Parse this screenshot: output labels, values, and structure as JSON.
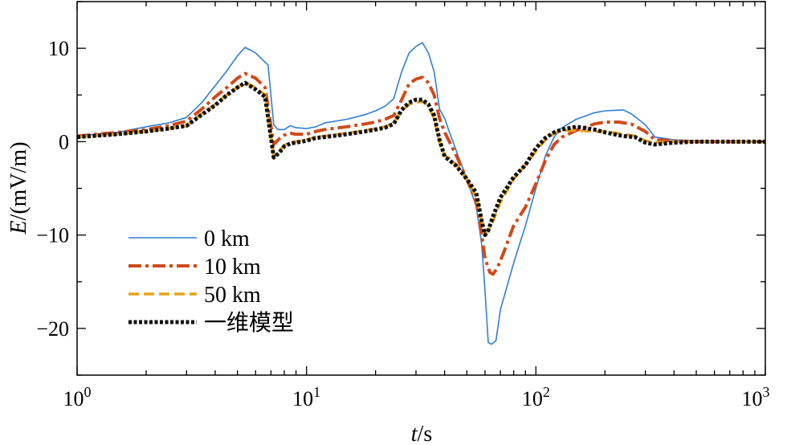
{
  "chart_data": {
    "type": "line",
    "xlabel_italic": "t",
    "xlabel_unit": "/s",
    "ylabel_italic": "E",
    "ylabel_unit": "/(mV/m)",
    "xscale": "log",
    "xlim": [
      1,
      1000
    ],
    "ylim": [
      -25,
      15
    ],
    "x_ticks": [
      {
        "value": 1,
        "base": "10",
        "exp": "0"
      },
      {
        "value": 10,
        "base": "10",
        "exp": "1"
      },
      {
        "value": 100,
        "base": "10",
        "exp": "2"
      },
      {
        "value": 1000,
        "base": "10",
        "exp": "3"
      }
    ],
    "y_ticks": [
      {
        "value": 10,
        "label": "10"
      },
      {
        "value": 0,
        "label": "0"
      },
      {
        "value": -10,
        "label": "−10"
      },
      {
        "value": -20,
        "label": "−20"
      }
    ],
    "grid": false,
    "legend_position": "lower-left",
    "series": [
      {
        "name": "0 km",
        "color": "#2f7fd6",
        "style": "solid",
        "points": [
          [
            1,
            0.6
          ],
          [
            1.5,
            1.0
          ],
          [
            2,
            1.6
          ],
          [
            2.5,
            2.0
          ],
          [
            3,
            2.6
          ],
          [
            3.5,
            4.2
          ],
          [
            4,
            6.0
          ],
          [
            4.5,
            7.6
          ],
          [
            5,
            9.2
          ],
          [
            5.4,
            10.1
          ],
          [
            6,
            9.5
          ],
          [
            6.8,
            8.2
          ],
          [
            7.2,
            1.8
          ],
          [
            7.5,
            1.3
          ],
          [
            8,
            1.3
          ],
          [
            8.5,
            1.7
          ],
          [
            9,
            1.5
          ],
          [
            10,
            1.4
          ],
          [
            11,
            1.6
          ],
          [
            12,
            2.0
          ],
          [
            15,
            2.4
          ],
          [
            18,
            2.9
          ],
          [
            20,
            3.3
          ],
          [
            22,
            3.8
          ],
          [
            24,
            4.6
          ],
          [
            26,
            7.5
          ],
          [
            28,
            9.5
          ],
          [
            30,
            10.2
          ],
          [
            32,
            10.6
          ],
          [
            34,
            9.5
          ],
          [
            36,
            7.5
          ],
          [
            38,
            3.5
          ],
          [
            40,
            2.5
          ],
          [
            42,
            1.0
          ],
          [
            45,
            -1.0
          ],
          [
            50,
            -4.0
          ],
          [
            55,
            -7.0
          ],
          [
            58,
            -11.0
          ],
          [
            60,
            -16.0
          ],
          [
            62,
            -21.5
          ],
          [
            64,
            -21.7
          ],
          [
            67,
            -21.3
          ],
          [
            70,
            -18.0
          ],
          [
            80,
            -13.0
          ],
          [
            90,
            -9.0
          ],
          [
            100,
            -5.0
          ],
          [
            110,
            -1.5
          ],
          [
            120,
            0.5
          ],
          [
            130,
            1.5
          ],
          [
            150,
            2.4
          ],
          [
            180,
            3.1
          ],
          [
            200,
            3.3
          ],
          [
            240,
            3.4
          ],
          [
            260,
            3.0
          ],
          [
            300,
            1.8
          ],
          [
            330,
            0.5
          ],
          [
            400,
            0.2
          ],
          [
            500,
            0.1
          ],
          [
            1000,
            0.0
          ]
        ]
      },
      {
        "name": "10 km",
        "color": "#d14a1a",
        "style": "dashdot",
        "points": [
          [
            1,
            0.6
          ],
          [
            1.5,
            1.0
          ],
          [
            2,
            1.3
          ],
          [
            2.5,
            1.7
          ],
          [
            3,
            2.2
          ],
          [
            3.5,
            3.5
          ],
          [
            4,
            4.8
          ],
          [
            4.5,
            5.8
          ],
          [
            5,
            6.8
          ],
          [
            5.4,
            7.3
          ],
          [
            6,
            6.8
          ],
          [
            6.6,
            5.8
          ],
          [
            7.2,
            -0.3
          ],
          [
            7.6,
            0.3
          ],
          [
            8,
            0.7
          ],
          [
            8.5,
            0.9
          ],
          [
            9,
            0.8
          ],
          [
            10,
            0.8
          ],
          [
            11,
            1.1
          ],
          [
            12,
            1.3
          ],
          [
            15,
            1.6
          ],
          [
            18,
            1.9
          ],
          [
            20,
            2.1
          ],
          [
            22,
            2.4
          ],
          [
            24,
            2.8
          ],
          [
            26,
            4.5
          ],
          [
            28,
            6.2
          ],
          [
            30,
            6.7
          ],
          [
            32,
            6.9
          ],
          [
            34,
            6.3
          ],
          [
            36,
            5.0
          ],
          [
            38,
            2.5
          ],
          [
            40,
            1.0
          ],
          [
            42,
            0.0
          ],
          [
            45,
            -1.5
          ],
          [
            50,
            -4.0
          ],
          [
            55,
            -6.5
          ],
          [
            58,
            -10.0
          ],
          [
            60,
            -12.5
          ],
          [
            63,
            -14.0
          ],
          [
            65,
            -14.2
          ],
          [
            68,
            -13.5
          ],
          [
            72,
            -12.0
          ],
          [
            80,
            -9.0
          ],
          [
            90,
            -7.0
          ],
          [
            100,
            -4.5
          ],
          [
            110,
            -2.0
          ],
          [
            120,
            -0.3
          ],
          [
            130,
            0.5
          ],
          [
            150,
            1.2
          ],
          [
            180,
            1.9
          ],
          [
            200,
            2.1
          ],
          [
            230,
            2.1
          ],
          [
            260,
            1.9
          ],
          [
            300,
            1.1
          ],
          [
            330,
            0.2
          ],
          [
            400,
            0.1
          ],
          [
            500,
            0.0
          ],
          [
            1000,
            0.0
          ]
        ]
      },
      {
        "name": "50 km",
        "color": "#e8a21a",
        "style": "dashed",
        "points": [
          [
            1,
            0.5
          ],
          [
            1.5,
            0.8
          ],
          [
            2,
            1.1
          ],
          [
            2.5,
            1.4
          ],
          [
            3,
            1.7
          ],
          [
            3.5,
            3.0
          ],
          [
            4,
            4.0
          ],
          [
            4.5,
            5.0
          ],
          [
            5,
            5.8
          ],
          [
            5.4,
            6.3
          ],
          [
            6,
            5.8
          ],
          [
            6.6,
            5.0
          ],
          [
            7.2,
            -1.5
          ],
          [
            7.6,
            -1.0
          ],
          [
            8,
            -0.4
          ],
          [
            8.5,
            -0.1
          ],
          [
            9,
            0.0
          ],
          [
            10,
            0.2
          ],
          [
            11,
            0.5
          ],
          [
            12,
            0.6
          ],
          [
            15,
            0.9
          ],
          [
            18,
            1.2
          ],
          [
            20,
            1.4
          ],
          [
            22,
            1.6
          ],
          [
            24,
            2.0
          ],
          [
            26,
            3.3
          ],
          [
            28,
            4.0
          ],
          [
            30,
            4.2
          ],
          [
            32,
            4.3
          ],
          [
            34,
            3.8
          ],
          [
            36,
            2.5
          ],
          [
            38,
            0.0
          ],
          [
            40,
            -1.5
          ],
          [
            42,
            -1.8
          ],
          [
            45,
            -2.5
          ],
          [
            50,
            -4.0
          ],
          [
            55,
            -6.0
          ],
          [
            58,
            -8.5
          ],
          [
            60,
            -9.8
          ],
          [
            62,
            -9.5
          ],
          [
            65,
            -8.5
          ],
          [
            70,
            -6.5
          ],
          [
            80,
            -4.0
          ],
          [
            90,
            -2.5
          ],
          [
            100,
            -1.0
          ],
          [
            110,
            0.2
          ],
          [
            120,
            0.9
          ],
          [
            130,
            1.2
          ],
          [
            150,
            1.2
          ],
          [
            180,
            1.1
          ],
          [
            200,
            1.1
          ],
          [
            240,
            0.8
          ],
          [
            270,
            0.6
          ],
          [
            300,
            0.1
          ],
          [
            330,
            -0.1
          ],
          [
            400,
            0.0
          ],
          [
            500,
            0.0
          ],
          [
            1000,
            0.0
          ]
        ]
      },
      {
        "name": "一维模型",
        "color": "#111111",
        "style": "dotted",
        "points": [
          [
            1,
            0.5
          ],
          [
            1.5,
            0.8
          ],
          [
            2,
            1.1
          ],
          [
            2.5,
            1.4
          ],
          [
            3,
            1.7
          ],
          [
            3.5,
            2.9
          ],
          [
            4,
            3.9
          ],
          [
            4.5,
            5.0
          ],
          [
            5,
            5.8
          ],
          [
            5.4,
            6.3
          ],
          [
            6,
            5.6
          ],
          [
            6.6,
            4.8
          ],
          [
            7.2,
            -1.7
          ],
          [
            7.6,
            -1.2
          ],
          [
            8,
            -0.5
          ],
          [
            8.5,
            -0.2
          ],
          [
            9,
            -0.1
          ],
          [
            10,
            0.1
          ],
          [
            11,
            0.4
          ],
          [
            12,
            0.5
          ],
          [
            15,
            0.8
          ],
          [
            18,
            1.1
          ],
          [
            20,
            1.3
          ],
          [
            22,
            1.5
          ],
          [
            24,
            1.9
          ],
          [
            26,
            3.4
          ],
          [
            28,
            4.2
          ],
          [
            30,
            4.5
          ],
          [
            32,
            4.5
          ],
          [
            34,
            4.0
          ],
          [
            36,
            2.8
          ],
          [
            38,
            0.2
          ],
          [
            40,
            -1.6
          ],
          [
            42,
            -2.0
          ],
          [
            45,
            -2.6
          ],
          [
            50,
            -4.0
          ],
          [
            55,
            -5.5
          ],
          [
            58,
            -8.5
          ],
          [
            60,
            -10.0
          ],
          [
            62,
            -9.5
          ],
          [
            65,
            -8.0
          ],
          [
            70,
            -6.0
          ],
          [
            80,
            -3.8
          ],
          [
            90,
            -2.5
          ],
          [
            100,
            -0.7
          ],
          [
            110,
            0.4
          ],
          [
            120,
            1.0
          ],
          [
            130,
            1.3
          ],
          [
            150,
            1.6
          ],
          [
            180,
            1.3
          ],
          [
            200,
            1.0
          ],
          [
            240,
            0.6
          ],
          [
            270,
            0.5
          ],
          [
            300,
            -0.1
          ],
          [
            330,
            -0.3
          ],
          [
            400,
            -0.1
          ],
          [
            500,
            0.0
          ],
          [
            1000,
            0.0
          ]
        ]
      }
    ]
  }
}
